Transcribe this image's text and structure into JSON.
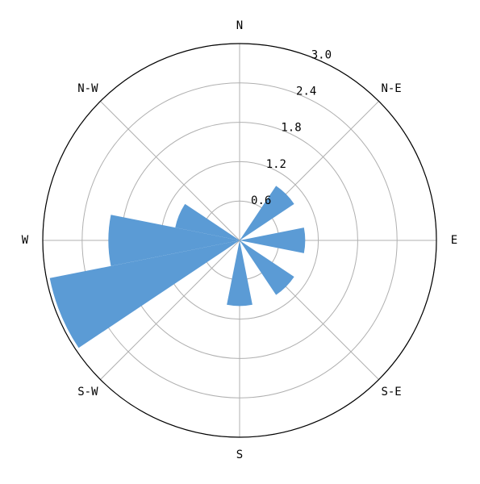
{
  "chart_data": {
    "type": "polar-bar",
    "categories": [
      "N",
      null,
      "N-E",
      null,
      "E",
      null,
      "S-E",
      null,
      "S",
      null,
      "S-W",
      null,
      "W",
      null,
      "N-W",
      null
    ],
    "values": [
      0,
      0,
      1.0,
      0,
      1.0,
      0,
      1.0,
      0,
      1.0,
      0,
      0,
      2.95,
      2.0,
      1.0,
      0,
      0
    ],
    "color": "#5b9bd5",
    "rlim": [
      0,
      3
    ],
    "rticks": [
      0.6,
      1.2,
      1.8,
      2.4,
      {
        "value": 3,
        "label": "3.0"
      }
    ],
    "grid": true
  }
}
